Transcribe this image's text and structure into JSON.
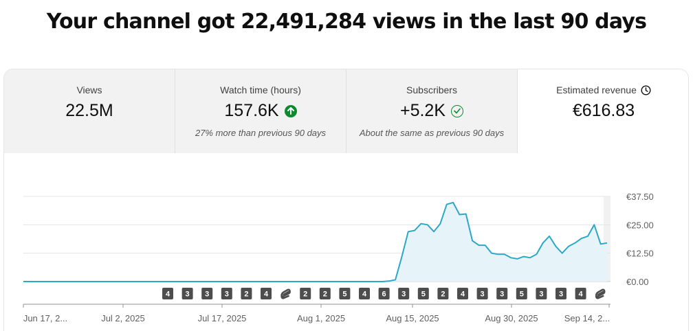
{
  "headline": "Your channel got 22,491,284 views in the last 90 days",
  "metrics": [
    {
      "title": "Views",
      "value": "22.5M",
      "note": ""
    },
    {
      "title": "Watch time (hours)",
      "value": "157.6K",
      "note": "27% more than previous 90 days",
      "status_icon": "arrow-up-circle-icon"
    },
    {
      "title": "Subscribers",
      "value": "+5.2K",
      "note": "About the same as previous 90 days",
      "status_icon": "check-circle-icon"
    },
    {
      "title": "Estimated revenue",
      "value": "€616.83",
      "note": "",
      "title_icon": "clock-icon",
      "selected": true
    }
  ],
  "colors": {
    "line": "#2ba8c7",
    "fill": "#e6f3f8",
    "positive": "#0b8a2e",
    "badge": "#4d4d4d"
  },
  "chart_data": {
    "type": "area",
    "x_labels": [
      "Jun 17, 2...",
      "Jul 2, 2025",
      "Jul 17, 2025",
      "Aug 1, 2025",
      "Aug 15, 2025",
      "Aug 30, 2025",
      "Sep 14, 2..."
    ],
    "y_ticks": [
      "€0.00",
      "€12.50",
      "€25.00",
      "€37.50"
    ],
    "ylim": [
      0,
      37.5
    ],
    "values": [
      0,
      0,
      0,
      0,
      0,
      0,
      0,
      0,
      0,
      0,
      0,
      0,
      0,
      0,
      0,
      0,
      0,
      0,
      0,
      0,
      0,
      0,
      0,
      0,
      0,
      0,
      0,
      0,
      0,
      0,
      0,
      0,
      0,
      0,
      0,
      0,
      0,
      0,
      0,
      0,
      0,
      0,
      0,
      0,
      0,
      0,
      0,
      0,
      0,
      0,
      0,
      0,
      0,
      0,
      0,
      0,
      0,
      0.2,
      0.8,
      11,
      22,
      22.5,
      25.5,
      25,
      22,
      25.5,
      34,
      34.8,
      29.5,
      29.8,
      18,
      16,
      16,
      12.5,
      12,
      12,
      10.5,
      10,
      11,
      10.5,
      12,
      17,
      20,
      15.5,
      12.5,
      15.5,
      17,
      19,
      20,
      25,
      16.5,
      17
    ],
    "badges": [
      "4",
      "3",
      "3",
      "3",
      "2",
      "4",
      "shorts",
      "2",
      "2",
      "5",
      "4",
      "6",
      "3",
      "5",
      "2",
      "4",
      "3",
      "3",
      "5",
      "3",
      "3",
      "4",
      "shorts"
    ]
  }
}
